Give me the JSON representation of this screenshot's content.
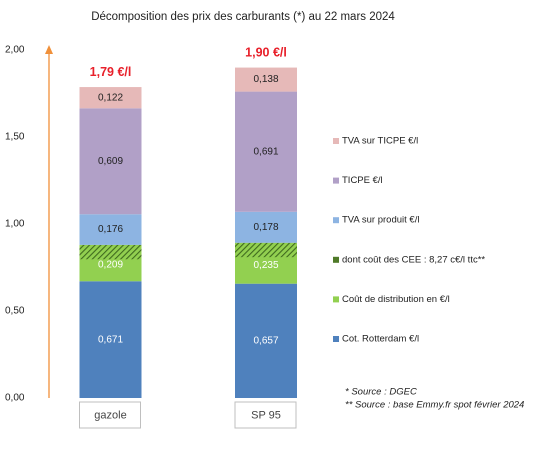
{
  "chart_data": {
    "type": "stacked_bar",
    "title": "Décomposition des prix des carburants (*) au 22 mars 2024",
    "categories": [
      "gazole",
      "SP 95"
    ],
    "series": [
      {
        "name": "Cot. Rotterdam €/l",
        "color": "#4f81bd",
        "label_color": "#ffffff",
        "values": [
          0.671,
          0.657
        ],
        "value_labels": [
          "0,671",
          "0,657"
        ]
      },
      {
        "name": "Coût de distribution en €/l",
        "color": "#92d050",
        "label_color": "#ffffff",
        "values": [
          0.209,
          0.235
        ],
        "value_labels": [
          "0,209",
          "0,235"
        ]
      },
      {
        "name": "dont coût des CEE : 8,27 c€/l ttc**",
        "color": "#4f7a28",
        "hatch": true,
        "stack": false,
        "values": [
          0.0827,
          0.0827
        ]
      },
      {
        "name": "TVA sur produit €/l",
        "color": "#8db4e2",
        "label_color": "#222222",
        "values": [
          0.176,
          0.178
        ],
        "value_labels": [
          "0,176",
          "0,178"
        ]
      },
      {
        "name": "TICPE €/l",
        "color": "#b1a0c7",
        "label_color": "#222222",
        "values": [
          0.609,
          0.691
        ],
        "value_labels": [
          "0,609",
          "0,691"
        ]
      },
      {
        "name": "TVA sur TICPE €/l",
        "color": "#e6b9b8",
        "label_color": "#222222",
        "values": [
          0.122,
          0.138
        ],
        "value_labels": [
          "0,122",
          "0,138"
        ]
      }
    ],
    "totals": {
      "values": [
        1.79,
        1.9
      ],
      "value_labels": [
        "1,79 €/l",
        "1,90 €/l"
      ]
    },
    "ylim": [
      0,
      2
    ],
    "yticks": [
      {
        "value": 0,
        "label": "0,00"
      },
      {
        "value": 0.5,
        "label": "0,50"
      },
      {
        "value": 1,
        "label": "1,00"
      },
      {
        "value": 1.5,
        "label": "1,50"
      },
      {
        "value": 2,
        "label": "2,00"
      }
    ],
    "axis_color": "#f0903a",
    "notes": [
      "* Source : DGEC",
      "** Source : base Emmy.fr spot février 2024"
    ]
  }
}
